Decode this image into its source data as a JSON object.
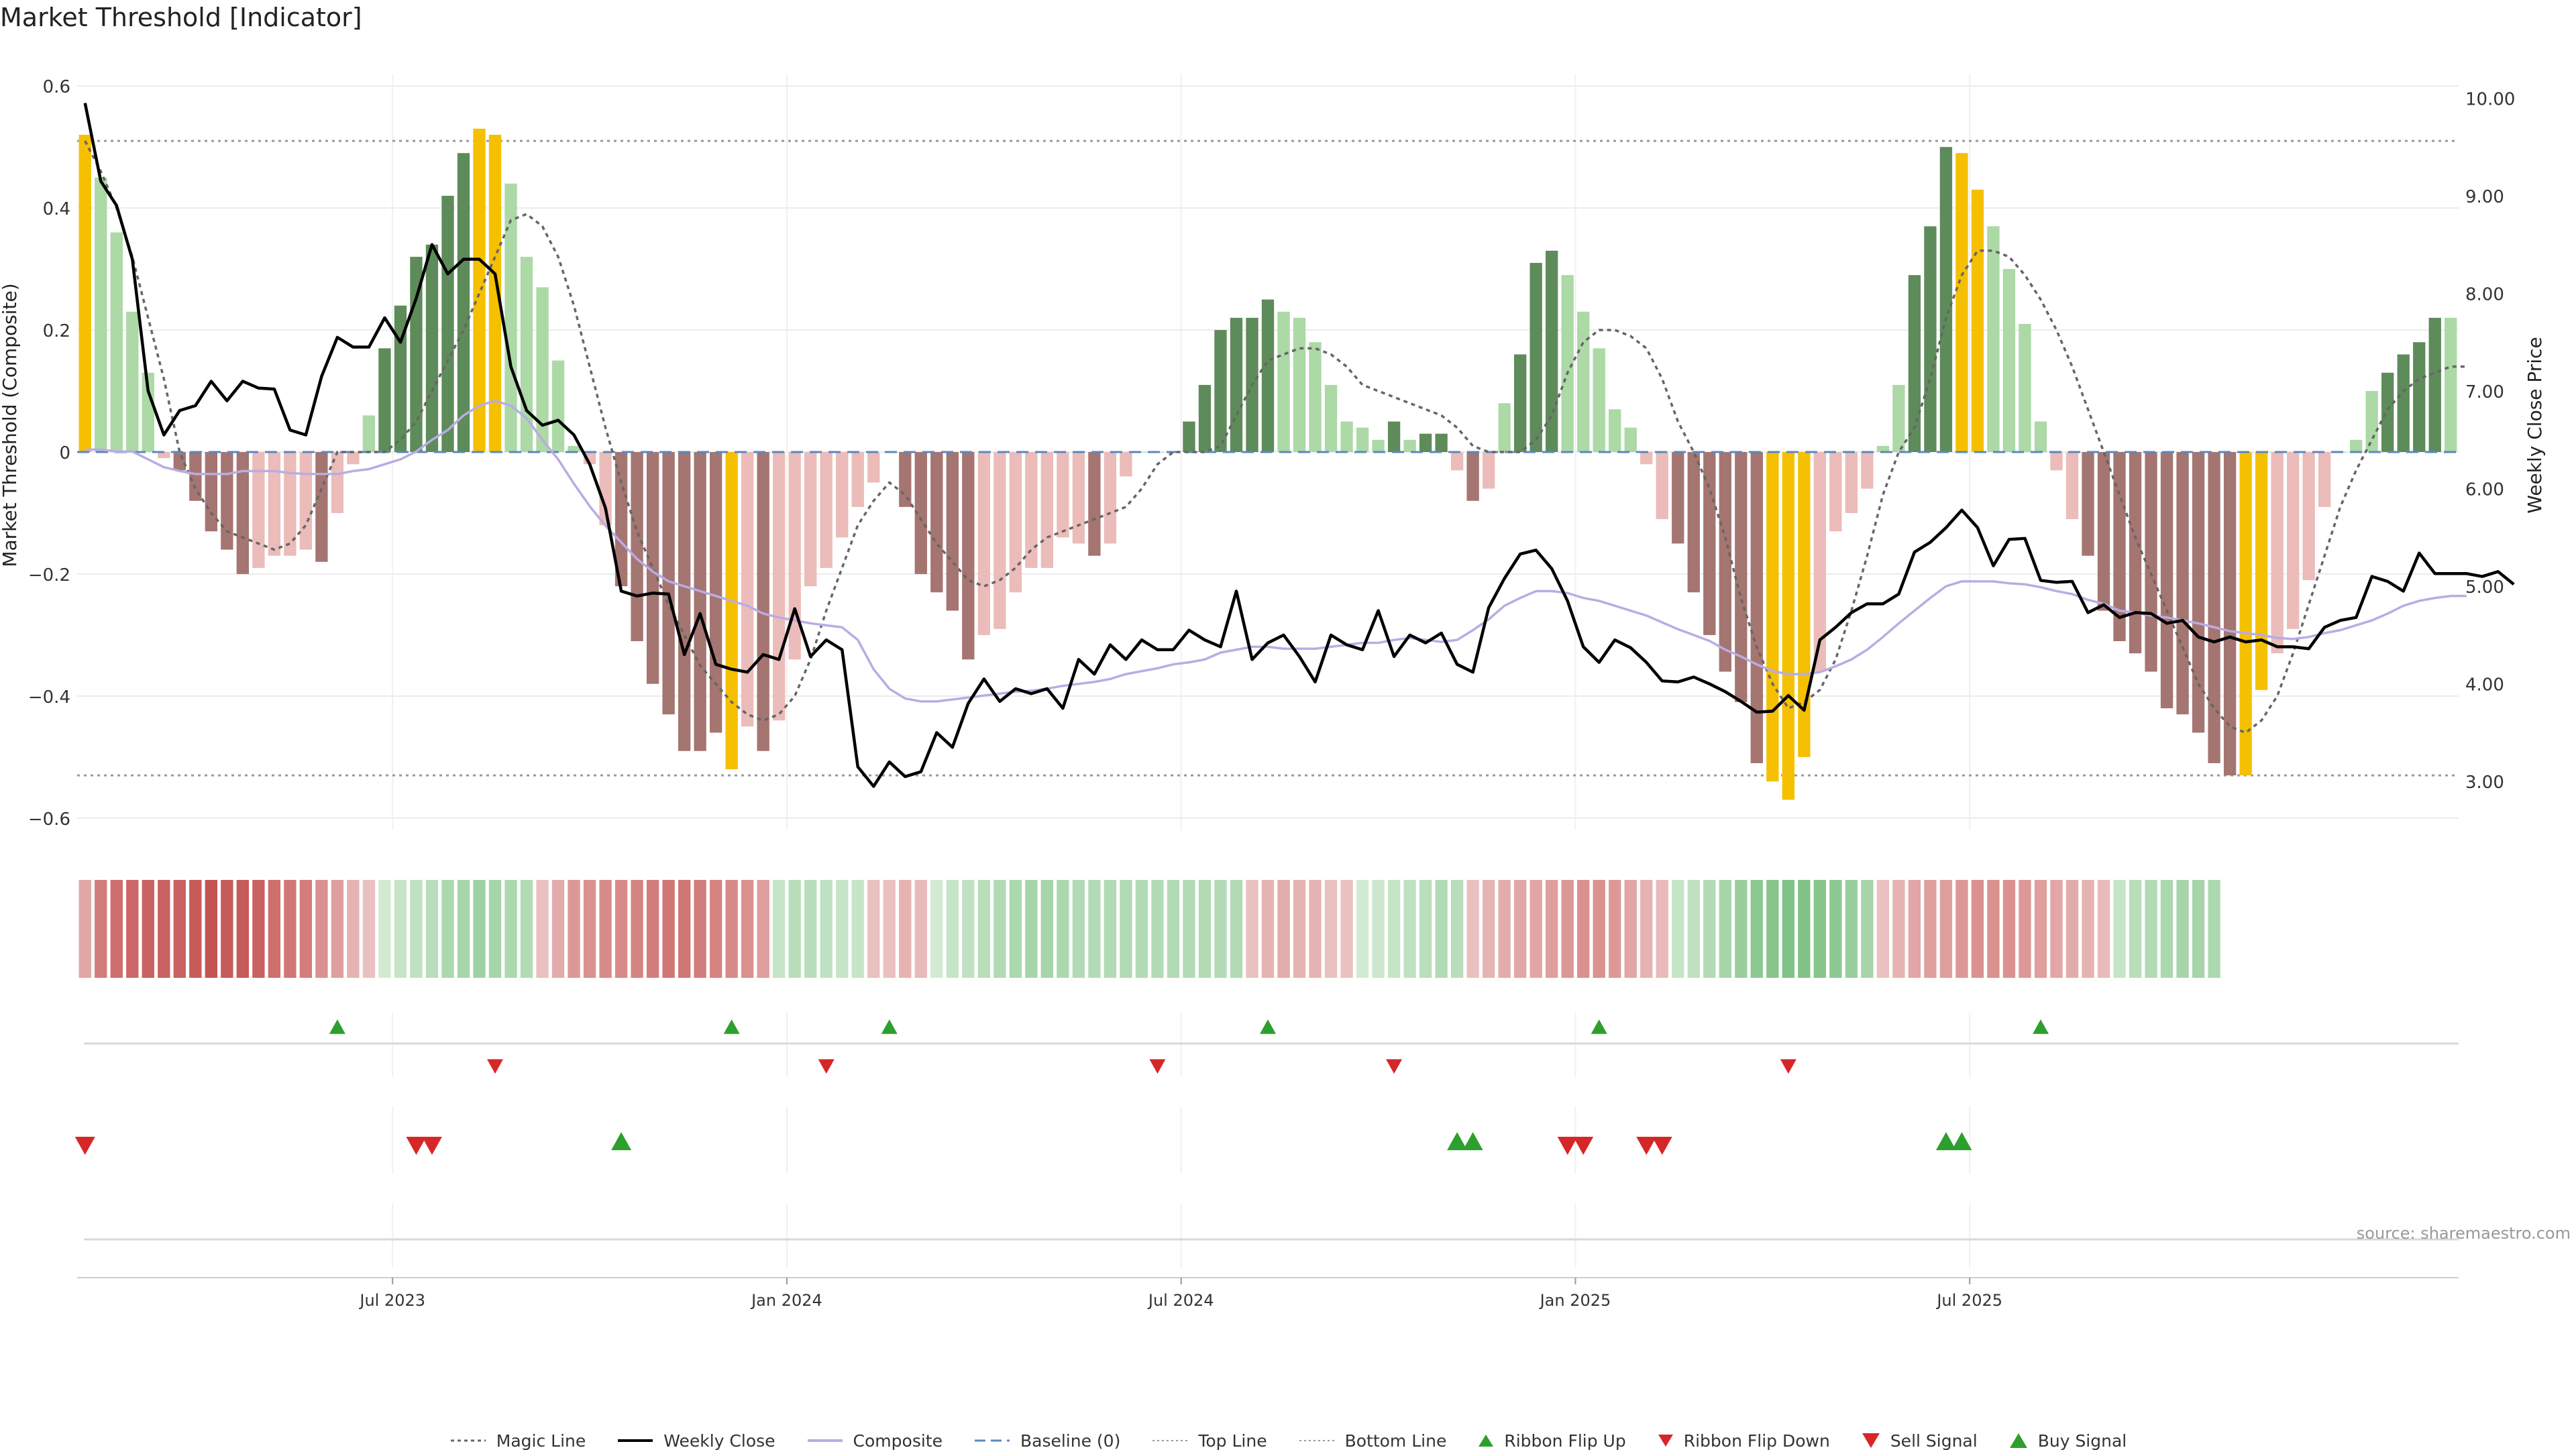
{
  "title": "Market Threshold [Indicator]",
  "source": "source: sharemaestro.com",
  "colors": {
    "bull_strong": "#5e8b5a",
    "bull_weak": "#acd9a6",
    "bear_strong": "#a57571",
    "bear_weak": "#ebbcb9",
    "extreme": "#f5c000",
    "price": "#000000",
    "composite": "#b9ace3",
    "magic": "#666666",
    "baseline": "#5b87c0",
    "threshold": "#999999",
    "buy": "#2ca02c",
    "sell": "#d62728"
  },
  "chart_data": {
    "type": "bar",
    "title": "Market Threshold [Indicator]",
    "ylabel": "Market Threshold (Composite)",
    "y2label": "Weekly Close Price",
    "ylim": [
      -0.62,
      0.62
    ],
    "y2lim": [
      2.5,
      10.25
    ],
    "yticks": [
      0.6,
      0.4,
      0.2,
      0,
      -0.2,
      -0.4,
      -0.6
    ],
    "yticklabels": [
      "0.6",
      "0.4",
      "0.2",
      "0",
      "−0.2",
      "−0.4",
      "−0.6"
    ],
    "y2ticks": [
      10,
      9,
      8,
      7,
      6,
      5,
      4,
      3
    ],
    "y2ticklabels": [
      "10.00",
      "9.00",
      "8.00",
      "7.00",
      "6.00",
      "5.00",
      "4.00",
      "3.00"
    ],
    "xticks": [
      20,
      45,
      70,
      95,
      120
    ],
    "xticklabels": [
      "Jul 2023",
      "Jan 2024",
      "Jul 2024",
      "Jan 2025",
      "Jul 2025"
    ],
    "top_line": 0.51,
    "bottom_line": -0.53,
    "baseline": 0,
    "composite": [
      0.52,
      0.45,
      0.36,
      0.23,
      0.13,
      -0.01,
      -0.03,
      -0.08,
      -0.13,
      -0.16,
      -0.2,
      -0.19,
      -0.17,
      -0.17,
      -0.16,
      -0.18,
      -0.1,
      -0.02,
      0.06,
      0.17,
      0.24,
      0.32,
      0.34,
      0.42,
      0.49,
      0.53,
      0.52,
      0.44,
      0.32,
      0.27,
      0.15,
      0.01,
      -0.02,
      -0.12,
      -0.22,
      -0.31,
      -0.38,
      -0.43,
      -0.49,
      -0.49,
      -0.46,
      -0.52,
      -0.45,
      -0.49,
      -0.44,
      -0.34,
      -0.22,
      -0.19,
      -0.14,
      -0.09,
      -0.05,
      0.0,
      -0.09,
      -0.2,
      -0.23,
      -0.26,
      -0.34,
      -0.3,
      -0.29,
      -0.23,
      -0.19,
      -0.19,
      -0.14,
      -0.15,
      -0.17,
      -0.15,
      -0.04,
      0.0,
      0.0,
      0.0,
      0.05,
      0.11,
      0.2,
      0.22,
      0.22,
      0.25,
      0.23,
      0.22,
      0.18,
      0.11,
      0.05,
      0.04,
      0.02,
      0.05,
      0.02,
      0.03,
      0.03,
      -0.03,
      -0.08,
      -0.06,
      0.08,
      0.16,
      0.31,
      0.33,
      0.29,
      0.23,
      0.17,
      0.07,
      0.04,
      -0.02,
      -0.11,
      -0.15,
      -0.23,
      -0.3,
      -0.36,
      -0.41,
      -0.51,
      -0.54,
      -0.57,
      -0.5,
      -0.36,
      -0.13,
      -0.1,
      -0.06,
      0.01,
      0.11,
      0.29,
      0.37,
      0.5,
      0.49,
      0.43,
      0.37,
      0.3,
      0.21,
      0.05,
      -0.03,
      -0.11,
      -0.17,
      -0.26,
      -0.31,
      -0.33,
      -0.36,
      -0.42,
      -0.43,
      -0.46,
      -0.51,
      -0.53,
      -0.53,
      -0.39,
      -0.33,
      -0.29,
      -0.21,
      -0.09,
      0.0,
      0.02,
      0.1,
      0.13,
      0.16,
      0.18,
      0.22,
      0.22
    ],
    "bar_colors": [
      "E",
      "W",
      "W",
      "W",
      "W",
      "W",
      "S",
      "S",
      "S",
      "S",
      "S",
      "B",
      "B",
      "B",
      "B",
      "S",
      "B",
      "W",
      "W",
      "S",
      "S",
      "S",
      "S",
      "S",
      "S",
      "E",
      "E",
      "W",
      "W",
      "W",
      "W",
      "W",
      "B",
      "B",
      "S",
      "S",
      "S",
      "S",
      "S",
      "S",
      "S",
      "E",
      "B",
      "S",
      "B",
      "B",
      "B",
      "B",
      "B",
      "B",
      "B",
      "W",
      "S",
      "S",
      "S",
      "S",
      "S",
      "B",
      "B",
      "B",
      "B",
      "B",
      "B",
      "B",
      "S",
      "B",
      "B",
      "B",
      "B",
      "B",
      "S",
      "S",
      "S",
      "S",
      "S",
      "S",
      "W",
      "W",
      "W",
      "W",
      "W",
      "W",
      "W",
      "S",
      "W",
      "S",
      "S",
      "B",
      "S",
      "B",
      "W",
      "S",
      "S",
      "S",
      "W",
      "W",
      "W",
      "W",
      "W",
      "W",
      "B",
      "S",
      "S",
      "S",
      "S",
      "S",
      "S",
      "E",
      "E",
      "E",
      "B",
      "B",
      "B",
      "B",
      "B",
      "W",
      "S",
      "S",
      "S",
      "E",
      "E",
      "W",
      "W",
      "W",
      "W",
      "W",
      "B",
      "S",
      "S",
      "S",
      "S",
      "S",
      "S",
      "S",
      "S",
      "S",
      "S",
      "E",
      "E",
      "B",
      "B",
      "B",
      "B",
      "B",
      "W",
      "W",
      "S",
      "S",
      "S",
      "S",
      "W"
    ],
    "magic_line": [
      0.51,
      0.46,
      0.4,
      0.32,
      0.22,
      0.12,
      0.0,
      -0.06,
      -0.1,
      -0.13,
      -0.14,
      -0.15,
      -0.16,
      -0.15,
      -0.12,
      -0.06,
      0.0,
      0.0,
      0.0,
      0.0,
      0.02,
      0.05,
      0.1,
      0.15,
      0.2,
      0.26,
      0.32,
      0.38,
      0.39,
      0.37,
      0.32,
      0.24,
      0.14,
      0.04,
      -0.05,
      -0.13,
      -0.19,
      -0.25,
      -0.3,
      -0.35,
      -0.38,
      -0.41,
      -0.43,
      -0.44,
      -0.43,
      -0.4,
      -0.34,
      -0.26,
      -0.19,
      -0.12,
      -0.08,
      -0.05,
      -0.07,
      -0.11,
      -0.15,
      -0.18,
      -0.21,
      -0.22,
      -0.21,
      -0.19,
      -0.16,
      -0.14,
      -0.13,
      -0.12,
      -0.11,
      -0.1,
      -0.09,
      -0.06,
      -0.02,
      0.0,
      0.0,
      0.0,
      0.01,
      0.06,
      0.11,
      0.15,
      0.16,
      0.17,
      0.17,
      0.16,
      0.14,
      0.11,
      0.1,
      0.09,
      0.08,
      0.07,
      0.06,
      0.04,
      0.01,
      0.0,
      0.0,
      0.0,
      0.02,
      0.06,
      0.13,
      0.18,
      0.2,
      0.2,
      0.19,
      0.17,
      0.12,
      0.05,
      0.0,
      -0.06,
      -0.14,
      -0.24,
      -0.32,
      -0.38,
      -0.42,
      -0.41,
      -0.39,
      -0.34,
      -0.26,
      -0.17,
      -0.07,
      0.0,
      0.04,
      0.12,
      0.22,
      0.29,
      0.33,
      0.33,
      0.32,
      0.29,
      0.25,
      0.2,
      0.14,
      0.07,
      0.0,
      -0.07,
      -0.14,
      -0.2,
      -0.26,
      -0.32,
      -0.38,
      -0.42,
      -0.45,
      -0.46,
      -0.44,
      -0.4,
      -0.33,
      -0.25,
      -0.17,
      -0.09,
      -0.03,
      0.02,
      0.07,
      0.1,
      0.12,
      0.13,
      0.14,
      0.14
    ],
    "weekly_close": [
      9.95,
      9.15,
      8.9,
      8.35,
      7.0,
      6.55,
      6.8,
      6.85,
      7.1,
      6.9,
      7.1,
      7.03,
      7.02,
      6.6,
      6.55,
      7.15,
      7.55,
      7.45,
      7.45,
      7.75,
      7.5,
      7.95,
      8.5,
      8.2,
      8.35,
      8.35,
      8.2,
      7.25,
      6.8,
      6.65,
      6.7,
      6.55,
      6.25,
      5.8,
      4.95,
      4.9,
      4.93,
      4.92,
      4.3,
      4.72,
      4.2,
      4.15,
      4.12,
      4.3,
      4.25,
      4.77,
      4.28,
      4.45,
      4.35,
      3.15,
      2.95,
      3.2,
      3.05,
      3.1,
      3.5,
      3.35,
      3.8,
      4.05,
      3.82,
      3.95,
      3.9,
      3.95,
      3.75,
      4.25,
      4.1,
      4.4,
      4.25,
      4.45,
      4.35,
      4.35,
      4.55,
      4.45,
      4.38,
      4.95,
      4.25,
      4.42,
      4.5,
      4.28,
      4.02,
      4.5,
      4.4,
      4.35,
      4.75,
      4.28,
      4.5,
      4.42,
      4.52,
      4.2,
      4.12,
      4.78,
      5.08,
      5.33,
      5.37,
      5.18,
      4.85,
      4.38,
      4.22,
      4.45,
      4.37,
      4.22,
      4.03,
      4.02,
      4.07,
      4.0,
      3.92,
      3.82,
      3.71,
      3.72,
      3.88,
      3.73,
      4.45,
      4.58,
      4.73,
      4.82,
      4.82,
      4.92,
      5.35,
      5.45,
      5.6,
      5.78,
      5.6,
      5.21,
      5.48,
      5.49,
      5.06,
      5.04,
      5.05,
      4.73,
      4.81,
      4.68,
      4.73,
      4.72,
      4.62,
      4.65,
      4.48,
      4.43,
      4.48,
      4.43,
      4.45,
      4.38,
      4.38,
      4.36,
      4.58,
      4.65,
      4.68,
      5.1,
      5.05,
      4.95,
      5.34,
      5.13,
      5.13,
      5.13,
      5.1,
      5.15,
      5.02
    ],
    "composite_avg": [
      6.4,
      6.4,
      6.38,
      6.38,
      6.3,
      6.22,
      6.18,
      6.15,
      6.15,
      6.15,
      6.18,
      6.18,
      6.18,
      6.16,
      6.15,
      6.15,
      6.15,
      6.18,
      6.2,
      6.25,
      6.3,
      6.38,
      6.5,
      6.6,
      6.75,
      6.85,
      6.9,
      6.85,
      6.72,
      6.5,
      6.3,
      6.05,
      5.82,
      5.62,
      5.45,
      5.28,
      5.15,
      5.05,
      5.0,
      4.95,
      4.9,
      4.85,
      4.8,
      4.72,
      4.68,
      4.65,
      4.62,
      4.6,
      4.58,
      4.45,
      4.15,
      3.95,
      3.85,
      3.82,
      3.82,
      3.84,
      3.86,
      3.88,
      3.9,
      3.92,
      3.93,
      3.95,
      3.98,
      4.0,
      4.02,
      4.05,
      4.1,
      4.13,
      4.16,
      4.2,
      4.22,
      4.25,
      4.32,
      4.35,
      4.38,
      4.38,
      4.36,
      4.36,
      4.36,
      4.38,
      4.4,
      4.42,
      4.42,
      4.45,
      4.47,
      4.45,
      4.43,
      4.45,
      4.55,
      4.66,
      4.8,
      4.88,
      4.95,
      4.95,
      4.93,
      4.88,
      4.85,
      4.8,
      4.75,
      4.7,
      4.63,
      4.56,
      4.5,
      4.44,
      4.35,
      4.28,
      4.2,
      4.13,
      4.1,
      4.1,
      4.12,
      4.18,
      4.25,
      4.35,
      4.48,
      4.62,
      4.75,
      4.88,
      5.0,
      5.05,
      5.05,
      5.05,
      5.03,
      5.02,
      4.99,
      4.95,
      4.92,
      4.86,
      4.82,
      4.75,
      4.73,
      4.7,
      4.68,
      4.65,
      4.62,
      4.58,
      4.54,
      4.52,
      4.5,
      4.47,
      4.46,
      4.48,
      4.52,
      4.55,
      4.6,
      4.65,
      4.72,
      4.8,
      4.85,
      4.88,
      4.9,
      4.9
    ],
    "ribbon": [
      -0.4,
      -0.7,
      -0.8,
      -0.85,
      -0.9,
      -0.9,
      -0.9,
      -0.95,
      -1.0,
      -0.95,
      -0.95,
      -0.9,
      -0.8,
      -0.75,
      -0.7,
      -0.55,
      -0.45,
      -0.3,
      -0.2,
      0.2,
      0.3,
      0.35,
      0.4,
      0.5,
      0.55,
      0.6,
      0.55,
      0.5,
      0.45,
      -0.2,
      -0.35,
      -0.5,
      -0.55,
      -0.6,
      -0.6,
      -0.65,
      -0.7,
      -0.75,
      -0.75,
      -0.7,
      -0.65,
      -0.6,
      -0.55,
      -0.45,
      0.3,
      0.4,
      0.4,
      0.35,
      0.3,
      0.3,
      -0.2,
      -0.2,
      -0.3,
      -0.25,
      0.2,
      0.3,
      0.35,
      0.4,
      0.45,
      0.5,
      0.55,
      0.55,
      0.5,
      0.45,
      0.45,
      0.45,
      0.45,
      0.45,
      0.45,
      0.45,
      0.45,
      0.45,
      0.45,
      0.45,
      -0.2,
      -0.3,
      -0.35,
      -0.3,
      -0.3,
      -0.2,
      -0.2,
      0.2,
      0.25,
      0.3,
      0.35,
      0.4,
      0.45,
      0.4,
      -0.2,
      -0.3,
      -0.35,
      -0.4,
      -0.4,
      -0.45,
      -0.5,
      -0.55,
      -0.55,
      -0.5,
      -0.4,
      -0.3,
      -0.25,
      0.3,
      0.35,
      0.45,
      0.55,
      0.65,
      0.75,
      0.8,
      0.85,
      0.85,
      0.8,
      0.75,
      0.65,
      0.55,
      -0.2,
      -0.3,
      -0.4,
      -0.45,
      -0.45,
      -0.5,
      -0.55,
      -0.55,
      -0.55,
      -0.5,
      -0.45,
      -0.4,
      -0.35,
      -0.3,
      -0.25,
      0.3,
      0.4,
      0.45,
      0.5,
      0.55,
      0.55,
      0.5
    ],
    "ribbon_flip_up": [
      16,
      41,
      51,
      75,
      96,
      124
    ],
    "ribbon_flip_down": [
      26,
      47,
      68,
      83,
      108
    ],
    "sell_signal": [
      0,
      21,
      22,
      94,
      95,
      99,
      100
    ],
    "buy_signal": [
      34,
      87,
      88,
      118,
      119
    ],
    "legend": [
      "Magic Line",
      "Weekly Close",
      "Composite",
      "Baseline (0)",
      "Top Line",
      "Bottom Line",
      "Ribbon Flip Up",
      "Ribbon Flip Down",
      "Sell Signal",
      "Buy Signal"
    ]
  }
}
